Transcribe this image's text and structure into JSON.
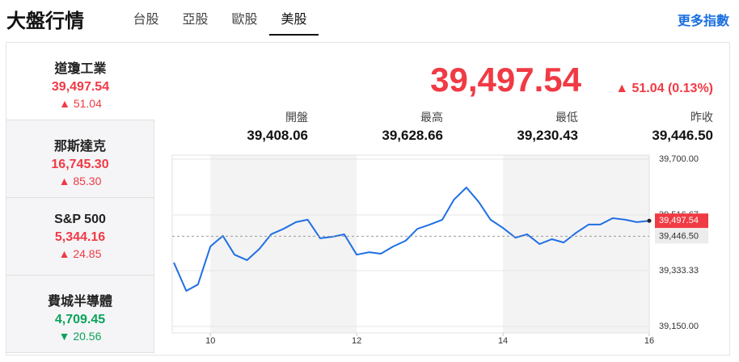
{
  "header": {
    "title": "大盤行情",
    "tabs": [
      "台股",
      "亞股",
      "歐股",
      "美股"
    ],
    "active_tab": 3,
    "more": "更多指數"
  },
  "indices": [
    {
      "name": "道瓊工業",
      "price": "39,497.54",
      "change": "51.04",
      "direction": "up"
    },
    {
      "name": "那斯達克",
      "price": "16,745.30",
      "change": "85.30",
      "direction": "up"
    },
    {
      "name": "S&P 500",
      "price": "5,344.16",
      "change": "24.85",
      "direction": "up"
    },
    {
      "name": "費城半導體",
      "price": "4,709.45",
      "change": "20.56",
      "direction": "down"
    }
  ],
  "active_index": 0,
  "quote": {
    "price": "39,497.54",
    "change": "51.04 (0.13%)",
    "direction": "up",
    "stats": [
      {
        "label": "開盤",
        "value": "39,408.06"
      },
      {
        "label": "最高",
        "value": "39,628.66"
      },
      {
        "label": "最低",
        "value": "39,230.43"
      },
      {
        "label": "昨收",
        "value": "39,446.50"
      }
    ]
  },
  "chart_data": {
    "type": "line",
    "x": [
      9.5,
      9.67,
      9.83,
      10,
      10.17,
      10.33,
      10.5,
      10.67,
      10.83,
      11,
      11.17,
      11.33,
      11.5,
      11.67,
      11.83,
      12,
      12.17,
      12.33,
      12.5,
      12.67,
      12.83,
      13,
      13.17,
      13.33,
      13.5,
      13.67,
      13.83,
      14,
      14.17,
      14.33,
      14.5,
      14.67,
      14.83,
      15,
      15.17,
      15.33,
      15.5,
      15.67,
      15.83,
      16
    ],
    "series": [
      {
        "color": "#1f6fe5",
        "values": [
          39360,
          39267,
          39288,
          39413,
          39448,
          39386,
          39368,
          39405,
          39453,
          39471,
          39493,
          39501,
          39440,
          39445,
          39453,
          39386,
          39394,
          39389,
          39413,
          39432,
          39471,
          39485,
          39501,
          39567,
          39607,
          39559,
          39501,
          39474,
          39442,
          39453,
          39421,
          39437,
          39426,
          39458,
          39485,
          39485,
          39506,
          39501,
          39493,
          39497.54
        ]
      }
    ],
    "xlim": [
      9.5,
      16
    ],
    "xticks": [
      10,
      12,
      14,
      16
    ],
    "ylim": [
      39150,
      39700
    ],
    "yticks": [
      {
        "value": 39150,
        "label": "39,150.00"
      },
      {
        "value": 39333.33,
        "label": "39,333.33"
      },
      {
        "value": 39516.67,
        "label": "39,516.67"
      },
      {
        "value": 39700,
        "label": "39,700.00"
      }
    ],
    "grid": true,
    "annotations": [
      {
        "value": 39446.5,
        "label": "39,446.50",
        "color": "#ececec",
        "text_color": "#333333",
        "dashed": true
      },
      {
        "value": 39497.54,
        "label": "39,497.54",
        "color": "#f03a44",
        "text_color": "#ffffff",
        "dashed": false
      }
    ]
  }
}
